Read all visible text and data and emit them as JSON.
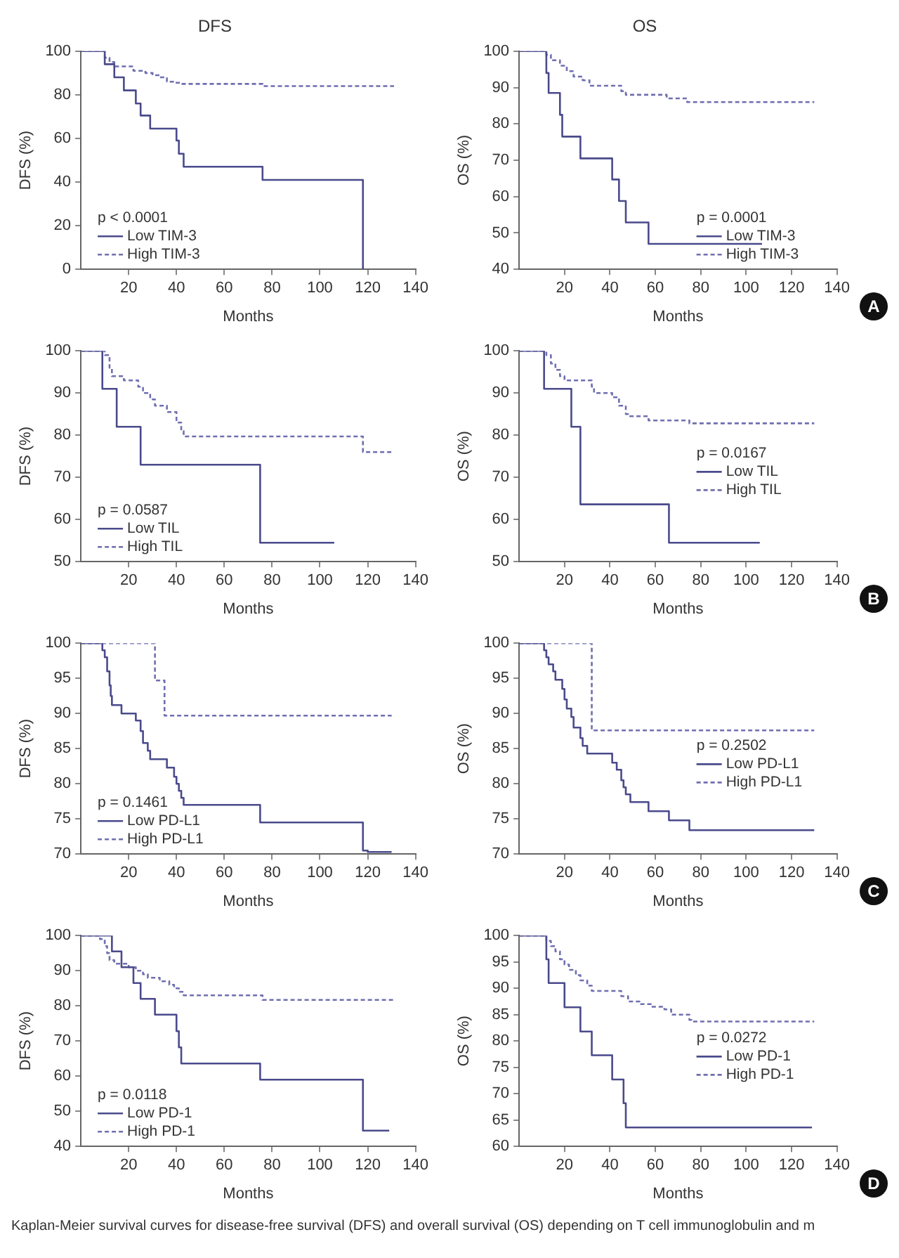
{
  "chart_data": [
    {
      "type": "step",
      "title": "DFS",
      "xlabel": "Months",
      "ylabel": "DFS (%)",
      "xlim": [
        0,
        140
      ],
      "xticks": [
        20,
        40,
        60,
        80,
        100,
        120,
        140
      ],
      "ylim": [
        0,
        100
      ],
      "yticks": [
        0,
        20,
        40,
        60,
        80,
        100
      ],
      "grid": false,
      "legend": "bottom left",
      "marker": "none",
      "annotations": [
        "p < 0.0001"
      ],
      "series": [
        {
          "name": "Low TIM-3",
          "color": "#4a4a8c",
          "line_style": "solid",
          "x": [
            0,
            10,
            14,
            18,
            23,
            25,
            29,
            40,
            41,
            43,
            76,
            118
          ],
          "values": [
            100,
            94,
            88,
            82,
            76,
            70.5,
            64.5,
            59,
            53,
            47,
            41,
            0
          ]
        },
        {
          "name": "High TIM-3",
          "color": "#6f6fb0",
          "line_style": "dashed",
          "x": [
            0,
            10,
            12,
            14,
            22,
            27,
            30,
            33,
            36,
            39,
            42,
            76,
            131
          ],
          "values": [
            100,
            97,
            95,
            93,
            91,
            90,
            89,
            88,
            86,
            85.5,
            85,
            84,
            84
          ]
        }
      ]
    },
    {
      "type": "step",
      "title": "OS",
      "xlabel": "Months",
      "ylabel": "OS (%)",
      "xlim": [
        0,
        140
      ],
      "xticks": [
        20,
        40,
        60,
        80,
        100,
        120,
        140
      ],
      "ylim": [
        40,
        100
      ],
      "yticks": [
        40,
        50,
        60,
        70,
        80,
        90,
        100
      ],
      "grid": false,
      "legend": "bottom right",
      "marker": "none",
      "annotations": [
        "p = 0.0001",
        "A"
      ],
      "series": [
        {
          "name": "Low TIM-3",
          "color": "#4a4a8c",
          "line_style": "solid",
          "x": [
            0,
            12,
            13,
            18,
            19,
            27,
            41,
            44,
            47,
            57,
            107
          ],
          "values": [
            100,
            94,
            88.5,
            82.5,
            76.5,
            70.5,
            64.7,
            58.8,
            52.9,
            47,
            47
          ]
        },
        {
          "name": "High TIM-3",
          "color": "#6f6fb0",
          "line_style": "dashed",
          "x": [
            0,
            12,
            14,
            18,
            21,
            24,
            28,
            31,
            45,
            47,
            65,
            74,
            130
          ],
          "values": [
            100,
            99,
            97.5,
            96,
            94.5,
            93,
            92,
            90.5,
            89,
            88,
            87,
            86,
            86
          ]
        }
      ]
    },
    {
      "type": "step",
      "xlabel": "Months",
      "ylabel": "DFS (%)",
      "xlim": [
        0,
        140
      ],
      "xticks": [
        20,
        40,
        60,
        80,
        100,
        120,
        140
      ],
      "ylim": [
        50,
        100
      ],
      "yticks": [
        50,
        60,
        70,
        80,
        90,
        100
      ],
      "grid": false,
      "legend": "bottom left",
      "marker": "none",
      "annotations": [
        "p = 0.0587"
      ],
      "series": [
        {
          "name": "Low TIL",
          "color": "#4a4a8c",
          "line_style": "solid",
          "x": [
            0,
            9,
            15,
            25,
            75,
            106
          ],
          "values": [
            100,
            91,
            82,
            73,
            54.5,
            54.5
          ]
        },
        {
          "name": "High TIL",
          "color": "#6f6fb0",
          "line_style": "dashed",
          "x": [
            0,
            10,
            12,
            13,
            18,
            24,
            26,
            29,
            31,
            36,
            40,
            42,
            43,
            118,
            131
          ],
          "values": [
            100,
            99,
            96,
            94,
            93,
            91.5,
            90,
            88.5,
            87,
            85.5,
            83,
            81,
            79.7,
            76,
            76
          ]
        }
      ]
    },
    {
      "type": "step",
      "xlabel": "Months",
      "ylabel": "OS (%)",
      "xlim": [
        0,
        140
      ],
      "xticks": [
        20,
        40,
        60,
        80,
        100,
        120,
        140
      ],
      "ylim": [
        50,
        100
      ],
      "yticks": [
        50,
        60,
        70,
        80,
        90,
        100
      ],
      "grid": false,
      "legend": "right",
      "marker": "none",
      "annotations": [
        "p = 0.0167",
        "B"
      ],
      "series": [
        {
          "name": "Low TIL",
          "color": "#4a4a8c",
          "line_style": "solid",
          "x": [
            0,
            11,
            23,
            27,
            66,
            106
          ],
          "values": [
            100,
            91,
            82,
            63.6,
            54.5,
            54.5
          ]
        },
        {
          "name": "High TIL",
          "color": "#6f6fb0",
          "line_style": "dashed",
          "x": [
            0,
            12,
            14,
            16,
            18,
            20,
            32,
            33,
            41,
            44,
            47,
            48,
            57,
            75,
            130
          ],
          "values": [
            100,
            99,
            97,
            95.5,
            94,
            93,
            91.5,
            90,
            89,
            87,
            85,
            84.5,
            83.5,
            82.8,
            82.8
          ]
        }
      ]
    },
    {
      "type": "step",
      "xlabel": "Months",
      "ylabel": "DFS (%)",
      "xlim": [
        0,
        140
      ],
      "xticks": [
        20,
        40,
        60,
        80,
        100,
        120,
        140
      ],
      "ylim": [
        70,
        100
      ],
      "yticks": [
        70,
        75,
        80,
        85,
        90,
        95,
        100
      ],
      "grid": false,
      "legend": "bottom left",
      "marker": "none",
      "annotations": [
        "p = 0.1461"
      ],
      "series": [
        {
          "name": "Low PD-L1",
          "color": "#4a4a8c",
          "line_style": "solid",
          "x": [
            0,
            9,
            10,
            11,
            12,
            12.5,
            13,
            17,
            23,
            25,
            26,
            28,
            29,
            36,
            39,
            40,
            41,
            42,
            43,
            75,
            118,
            120,
            130
          ],
          "values": [
            100,
            99,
            98,
            96,
            94,
            92.5,
            91.2,
            90,
            89,
            87.5,
            85.8,
            84.7,
            83.5,
            82.3,
            81,
            80,
            79,
            78,
            77,
            74.5,
            70.5,
            70.3,
            70.3
          ]
        },
        {
          "name": "High PD-L1",
          "color": "#6f6fb0",
          "line_style": "dashed",
          "x": [
            0,
            31,
            35,
            130
          ],
          "values": [
            100,
            94.7,
            89.7,
            89.7
          ]
        }
      ]
    },
    {
      "type": "step",
      "xlabel": "Months",
      "ylabel": "OS (%)",
      "xlim": [
        0,
        140
      ],
      "xticks": [
        20,
        40,
        60,
        80,
        100,
        120,
        140
      ],
      "ylim": [
        70,
        100
      ],
      "yticks": [
        70,
        75,
        80,
        85,
        90,
        95,
        100
      ],
      "grid": false,
      "legend": "right",
      "marker": "none",
      "annotations": [
        "p = 0.2502",
        "C"
      ],
      "series": [
        {
          "name": "Low PD-L1",
          "color": "#4a4a8c",
          "line_style": "solid",
          "x": [
            0,
            11,
            12,
            13,
            15,
            16,
            19,
            20,
            21,
            23,
            24,
            27,
            28,
            30,
            41,
            43,
            45,
            46,
            47,
            49,
            57,
            66,
            75,
            130
          ],
          "values": [
            100,
            99,
            98,
            97,
            96,
            94.8,
            93.5,
            92,
            90.7,
            89.5,
            88,
            86.5,
            85.4,
            84.3,
            83,
            82,
            80.5,
            79.5,
            78.5,
            77.4,
            76.1,
            74.8,
            73.4,
            73.4
          ]
        },
        {
          "name": "High PD-L1",
          "color": "#6f6fb0",
          "line_style": "dashed",
          "x": [
            0,
            32,
            130
          ],
          "values": [
            100,
            87.6,
            87.6
          ]
        }
      ]
    },
    {
      "type": "step",
      "xlabel": "Months",
      "ylabel": "DFS (%)",
      "xlim": [
        0,
        140
      ],
      "xticks": [
        20,
        40,
        60,
        80,
        100,
        120,
        140
      ],
      "ylim": [
        40,
        100
      ],
      "yticks": [
        40,
        50,
        60,
        70,
        80,
        90,
        100
      ],
      "grid": false,
      "legend": "bottom left",
      "marker": "none",
      "annotations": [
        "p = 0.0118"
      ],
      "series": [
        {
          "name": "Low PD-1",
          "color": "#4a4a8c",
          "line_style": "solid",
          "x": [
            0,
            13,
            17,
            22,
            25,
            31,
            40,
            41,
            42,
            75,
            118,
            129
          ],
          "values": [
            100,
            95.5,
            91,
            86.5,
            82,
            77.5,
            72.8,
            68.2,
            63.6,
            59,
            44.5,
            44.5
          ]
        },
        {
          "name": "High PD-1",
          "color": "#6f6fb0",
          "line_style": "dashed",
          "x": [
            0,
            8,
            10,
            11,
            12,
            14,
            20,
            23,
            26,
            28,
            33,
            37,
            39,
            41,
            43,
            76,
            131
          ],
          "values": [
            100,
            99,
            97,
            95,
            93,
            92,
            91,
            90,
            89,
            88,
            87,
            86,
            85,
            84,
            83,
            81.7,
            81.7
          ]
        }
      ]
    },
    {
      "type": "step",
      "xlabel": "Months",
      "ylabel": "OS (%)",
      "xlim": [
        0,
        140
      ],
      "xticks": [
        20,
        40,
        60,
        80,
        100,
        120,
        140
      ],
      "ylim": [
        60,
        100
      ],
      "yticks": [
        60,
        65,
        70,
        75,
        80,
        85,
        90,
        95,
        100
      ],
      "grid": false,
      "legend": "right",
      "marker": "none",
      "annotations": [
        "p = 0.0272",
        "D",
        "Kaplan-Meier survival curves for disease-free survival (DFS) and overall survival (OS) depending on T cell immunoglobulin and m"
      ],
      "series": [
        {
          "name": "Low PD-1",
          "color": "#4a4a8c",
          "line_style": "solid",
          "x": [
            0,
            12,
            13,
            20,
            27,
            32,
            41,
            46,
            47,
            129
          ],
          "values": [
            100,
            95.5,
            91,
            86.4,
            81.8,
            77.3,
            72.7,
            68.2,
            63.6,
            63.6
          ]
        },
        {
          "name": "High PD-1",
          "color": "#6f6fb0",
          "line_style": "dashed",
          "x": [
            0,
            12,
            14,
            16,
            18,
            20,
            22,
            25,
            27,
            30,
            32,
            45,
            48,
            53,
            58,
            64,
            67,
            75,
            76,
            130
          ],
          "values": [
            100,
            99,
            98,
            97,
            95.5,
            94.5,
            93.5,
            92.5,
            91.5,
            90.5,
            89.5,
            88.5,
            87.5,
            87,
            86.5,
            86,
            85,
            84,
            83.7,
            83.7
          ]
        }
      ]
    }
  ]
}
